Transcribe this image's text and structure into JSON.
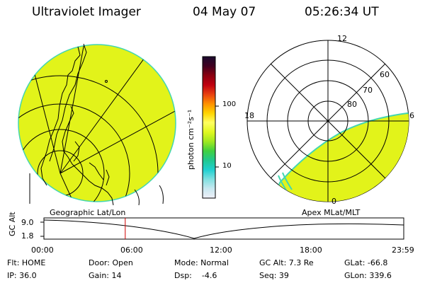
{
  "header": {
    "title": "Ultraviolet Imager",
    "date": "04 May 07",
    "time": "05:26:34 UT"
  },
  "colors": {
    "auroral_fill": "#e2f31a",
    "edge_cyan": "#43d6b0",
    "line": "#000000",
    "marker": "#d00000"
  },
  "geo_panel": {
    "label": "Geographic Lat/Lon"
  },
  "polar_panel": {
    "label": "Apex MLat/MLT",
    "mlt_labels": {
      "top": "12",
      "left": "18",
      "right": "6",
      "bottom": "0"
    },
    "lat_labels": [
      "60",
      "70",
      "80"
    ]
  },
  "colorbar": {
    "unit": "photon cm⁻²s⁻¹",
    "ticks": [
      "100",
      "10"
    ],
    "stops": [
      "#1a0a2e",
      "#400020",
      "#8b0010",
      "#c00010",
      "#e84010",
      "#ff9000",
      "#ffd400",
      "#ffff60",
      "#e0f820",
      "#a0e820",
      "#40d040",
      "#20c890",
      "#20d0d0",
      "#80e0e0",
      "#c8e8f0",
      "#f0f0f8"
    ]
  },
  "orbit": {
    "axis_label": "GC Alt",
    "y_ticks": [
      "9.0",
      "1.8"
    ],
    "x_ticks": [
      "00:00",
      "06:00",
      "12:00",
      "18:00",
      "23:59"
    ],
    "current_time_fraction": 0.226
  },
  "footer": {
    "row1": {
      "flt": "Flt: HOME",
      "door": "Door: Open",
      "mode": "Mode: Normal",
      "gc_alt": "GC Alt: 7.3 Re",
      "glat": "GLat: -66.8"
    },
    "row2": {
      "ip": "IP: 36.0",
      "gain": "Gain: 14",
      "dsp": "Dsp:    -4.6",
      "seq": "Seq: 39",
      "glon": "GLon: 339.6"
    }
  }
}
